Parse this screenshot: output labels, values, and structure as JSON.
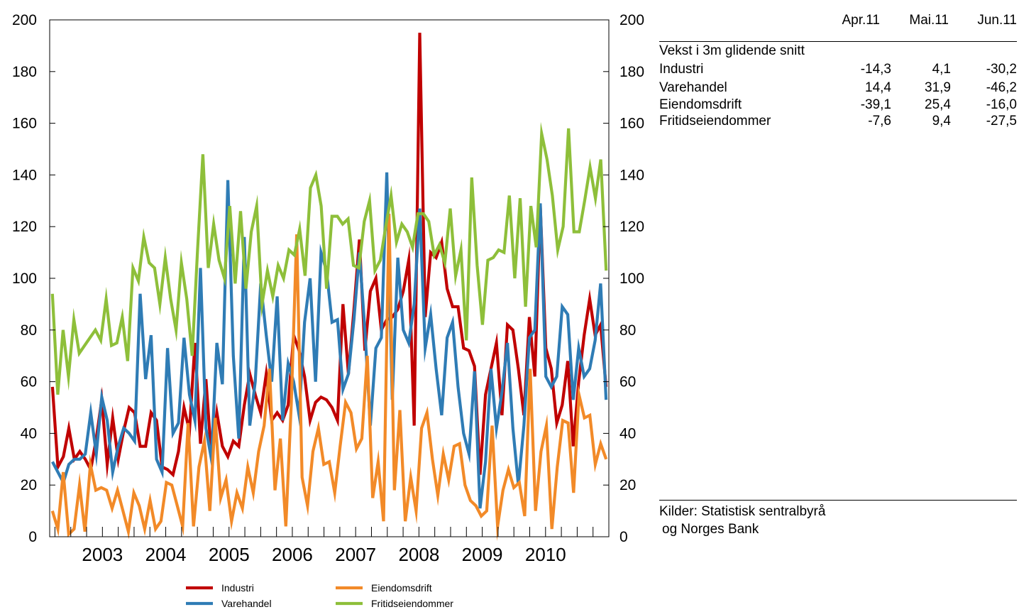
{
  "chart_data": {
    "type": "line",
    "left_axis_ticks": [
      "0",
      "20",
      "40",
      "60",
      "80",
      "100",
      "120",
      "140",
      "160",
      "180",
      "200"
    ],
    "right_axis_ticks": [
      "0",
      "20",
      "40",
      "60",
      "80",
      "100",
      "120",
      "140",
      "160",
      "180",
      "200"
    ],
    "ylim": [
      0,
      200
    ],
    "x_tick_labels": [
      "2003",
      "2004",
      "2005",
      "2006",
      "2007",
      "2008",
      "2009",
      "2010"
    ],
    "x_start": "2002-09",
    "x_end": "2011-06",
    "grid": false,
    "legend_position": "bottom",
    "series": [
      {
        "name": "Industri",
        "color": "#c00000",
        "values": [
          58,
          27,
          31,
          42,
          30,
          33,
          30,
          26,
          38,
          53,
          28,
          46,
          30,
          41,
          50,
          48,
          35,
          35,
          48,
          45,
          27,
          26,
          24,
          33,
          50,
          41,
          75,
          36,
          61,
          31,
          48,
          35,
          31,
          37,
          35,
          51,
          63,
          55,
          48,
          63,
          45,
          48,
          45,
          51,
          78,
          72,
          62,
          45,
          52,
          54,
          53,
          50,
          45,
          90,
          63,
          88,
          115,
          72,
          95,
          100,
          80,
          84,
          85,
          88,
          95,
          107,
          43,
          195,
          85,
          110,
          108,
          114,
          96,
          89,
          89,
          73,
          72,
          66,
          24,
          55,
          65,
          75,
          47,
          82,
          80,
          65,
          47,
          85,
          62,
          128,
          73,
          65,
          44,
          51,
          68,
          35,
          60,
          78,
          92,
          78,
          82,
          58
        ]
      },
      {
        "name": "Varehandel",
        "color": "#2f7cb5",
        "values": [
          29,
          25,
          21,
          28,
          30,
          30,
          32,
          48,
          32,
          54,
          45,
          25,
          35,
          42,
          40,
          37,
          94,
          61,
          78,
          30,
          25,
          73,
          40,
          44,
          77,
          55,
          45,
          104,
          42,
          30,
          75,
          59,
          138,
          70,
          38,
          116,
          43,
          60,
          98,
          78,
          60,
          93,
          45,
          67,
          60,
          47,
          83,
          100,
          60,
          110,
          103,
          83,
          84,
          57,
          63,
          84,
          110,
          80,
          43,
          73,
          77,
          141,
          53,
          108,
          80,
          75,
          90,
          127,
          73,
          86,
          65,
          47,
          77,
          83,
          58,
          40,
          32,
          64,
          11,
          29,
          65,
          42,
          56,
          75,
          42,
          20,
          43,
          77,
          80,
          129,
          62,
          58,
          62,
          89,
          86,
          53,
          73,
          62,
          65,
          76,
          98,
          53
        ]
      },
      {
        "name": "Eiendomsdrift",
        "color": "#f28a28",
        "values": [
          10,
          3,
          25,
          1,
          3,
          20,
          2,
          28,
          18,
          19,
          18,
          11,
          18,
          10,
          2,
          17,
          12,
          3,
          14,
          3,
          6,
          21,
          20,
          12,
          4,
          44,
          4,
          27,
          37,
          10,
          46,
          15,
          22,
          6,
          17,
          11,
          27,
          17,
          33,
          43,
          65,
          18,
          38,
          4,
          51,
          117,
          23,
          12,
          33,
          42,
          28,
          29,
          17,
          35,
          52,
          48,
          34,
          38,
          70,
          15,
          29,
          6,
          125,
          18,
          49,
          6,
          23,
          10,
          42,
          48,
          30,
          16,
          32,
          22,
          35,
          36,
          20,
          14,
          12,
          8,
          10,
          43,
          4,
          18,
          26,
          19,
          21,
          8,
          65,
          10,
          33,
          43,
          3,
          27,
          45,
          44,
          17,
          55,
          46,
          47,
          28,
          36,
          30
        ]
      },
      {
        "name": "Fritidseiendommer",
        "color": "#8ebf3a",
        "values": [
          94,
          55,
          80,
          62,
          84,
          71,
          74,
          77,
          80,
          76,
          92,
          74,
          75,
          85,
          68,
          104,
          99,
          116,
          106,
          104,
          90,
          108,
          92,
          80,
          106,
          92,
          70,
          111,
          148,
          104,
          121,
          107,
          100,
          128,
          98,
          126,
          96,
          118,
          128,
          90,
          103,
          93,
          105,
          100,
          111,
          109,
          119,
          101,
          135,
          140,
          128,
          96,
          124,
          124,
          121,
          123,
          105,
          104,
          122,
          130,
          103,
          107,
          120,
          132,
          114,
          121,
          118,
          112,
          125,
          125,
          122,
          109,
          113,
          106,
          127,
          101,
          111,
          76,
          139,
          105,
          82,
          107,
          108,
          111,
          110,
          132,
          100,
          131,
          89,
          128,
          112,
          156,
          146,
          132,
          111,
          120,
          158,
          118,
          118,
          130,
          143,
          131,
          146,
          103
        ]
      }
    ]
  },
  "table": {
    "headers": [
      "Apr.11",
      "Mai.11",
      "Jun.11"
    ],
    "title": "Vekst i 3m glidende snitt",
    "rows": [
      {
        "name": "Industri",
        "values": [
          "-14,3",
          "4,1",
          "-30,2"
        ]
      },
      {
        "name": "Varehandel",
        "values": [
          "14,4",
          "31,9",
          "-46,2"
        ]
      },
      {
        "name": "Eiendomsdrift",
        "values": [
          "-39,1",
          "25,4",
          "-16,0"
        ]
      },
      {
        "name": "Fritidseiendommer",
        "values": [
          "-7,6",
          "9,4",
          "-27,5"
        ]
      }
    ]
  },
  "source_line1": "Kilder: Statistisk sentralbyrå",
  "source_line2": "og Norges Bank"
}
